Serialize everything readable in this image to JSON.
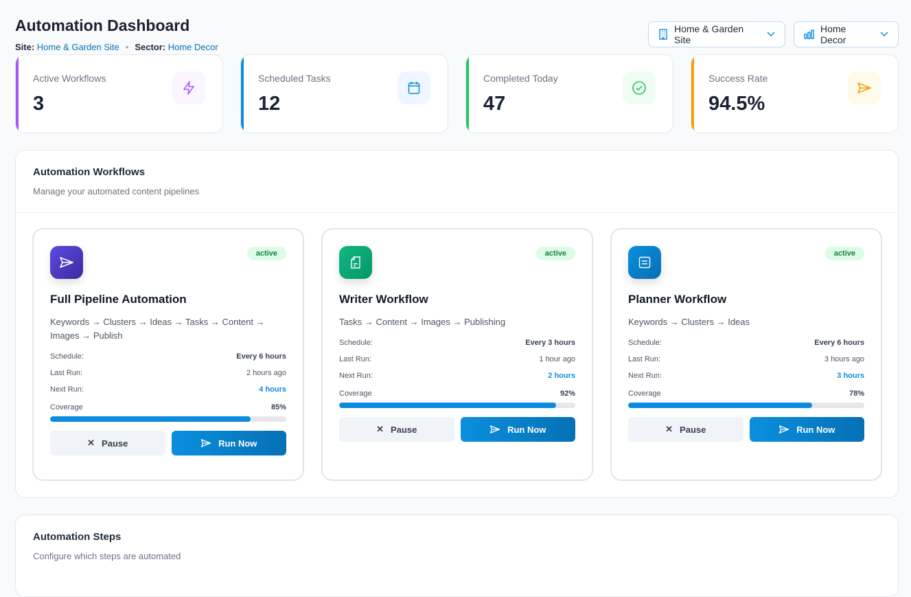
{
  "header": {
    "title": "Automation Dashboard",
    "site_label": "Site:",
    "site_value": "Home & Garden Site",
    "sector_label": "Sector:",
    "sector_value": "Home Decor",
    "separator": "•"
  },
  "selectors": {
    "site": "Home & Garden Site",
    "sector": "Home Decor"
  },
  "stats": [
    {
      "label": "Active Workflows",
      "value": "3",
      "icon": "zap-icon",
      "color": "#a855f7"
    },
    {
      "label": "Scheduled Tasks",
      "value": "12",
      "icon": "calendar-icon",
      "color": "#0b8be0"
    },
    {
      "label": "Completed Today",
      "value": "47",
      "icon": "check-circle-icon",
      "color": "#22c55e"
    },
    {
      "label": "Success Rate",
      "value": "94.5%",
      "icon": "send-icon",
      "color": "#f59e0b"
    }
  ],
  "workflows_panel": {
    "title": "Automation Workflows",
    "subtitle": "Manage your automated content pipelines"
  },
  "labels": {
    "schedule": "Schedule:",
    "last_run": "Last Run:",
    "next_run": "Next Run:",
    "coverage": "Coverage",
    "pause": "Pause",
    "run_now": "Run Now"
  },
  "workflows": [
    {
      "name": "Full Pipeline Automation",
      "status": "active",
      "desc": "Keywords → Clusters → Ideas → Tasks → Content → Images → Publish",
      "schedule": "Every 6 hours",
      "last_run": "2 hours ago",
      "next_run": "4 hours",
      "coverage": "85%",
      "coverage_value": 85,
      "icon": "send-icon"
    },
    {
      "name": "Writer Workflow",
      "status": "active",
      "desc": "Tasks → Content → Images → Publishing",
      "schedule": "Every 3 hours",
      "last_run": "1 hour ago",
      "next_run": "2 hours",
      "coverage": "92%",
      "coverage_value": 92,
      "icon": "file-text-icon"
    },
    {
      "name": "Planner Workflow",
      "status": "active",
      "desc": "Keywords → Clusters → Ideas",
      "schedule": "Every 6 hours",
      "last_run": "3 hours ago",
      "next_run": "3 hours",
      "coverage": "78%",
      "coverage_value": 78,
      "icon": "list-icon"
    }
  ],
  "steps_panel": {
    "title": "Automation Steps",
    "subtitle": "Configure which steps are automated"
  }
}
